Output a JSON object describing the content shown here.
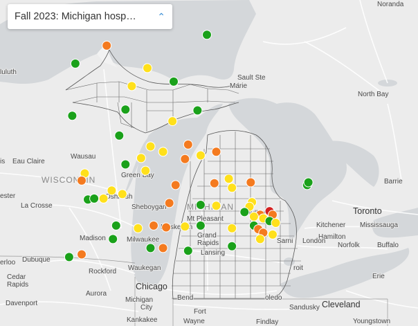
{
  "title": "Fall 2023: Michigan hosp…",
  "title_icon": "chevron-up-icon",
  "colors": {
    "land": "#f0f0f0",
    "water": "#d3d6d9",
    "green": "#1aa11a",
    "yellow": "#ffe01b",
    "orange": "#f47a1f",
    "red": "#d42121"
  },
  "labels": {
    "noranda": "Noranda",
    "sault": "Sault Ste",
    "marie": "Marie",
    "north_bay": "North Bay",
    "duluth": "luluth",
    "wausau": "Wausau",
    "eau_claire": "Eau Claire",
    "is": "is",
    "wisconsin": "WISCONSIN",
    "green_bay": "Green Bay",
    "barrie": "Barrie",
    "oshkosh": "Oshkosh",
    "sheboygan": "Sheboygan",
    "ester": "ester",
    "la_crosse": "La Crosse",
    "michigan": "MICHIGAN",
    "mt_pleasant": "Mt Pleasant",
    "midland": "Midland",
    "toronto": "Toronto",
    "kitchener": "Kitchener",
    "mississauga": "Mississauga",
    "muskegon": "Muskegon",
    "grand_rapids_1": "Grand",
    "grand_rapids_2": "Rapids",
    "madison": "Madison",
    "milwaukee": "Milwaukee",
    "hamilton": "Hamilton",
    "sarnia": "Sarni",
    "london": "London",
    "norfolk": "Norfolk",
    "buffalo": "Buffalo",
    "lansing": "Lansing",
    "detroit": "roit",
    "erloo": "erloo",
    "dubuque": "Dubuque",
    "waukegan": "Waukegan",
    "rockford": "Rockford",
    "cedar": "Cedar",
    "rapids": "Rapids",
    "erie": "Erie",
    "chicago": "Chicago",
    "aurora": "Aurora",
    "michigan_city_1": "Michigan",
    "michigan_city_2": "City",
    "south_bend": "Bend",
    "toledo": "oledo",
    "cleveland": "Cleveland",
    "davenport": "Davenport",
    "sandusky": "Sandusky",
    "kankakee": "Kankakee",
    "fort_wayne_1": "Fort",
    "fort_wayne_2": "Wayne",
    "findlay": "Findlay",
    "youngstown": "Youngstown"
  },
  "hospitals": [
    {
      "lat": 47.46,
      "lon": -88.18,
      "status": "orange"
    },
    {
      "lat": 46.86,
      "lon": -87.38,
      "status": "orange"
    },
    {
      "lat": 46.48,
      "lon": -84.38,
      "status": "orange"
    },
    {
      "lat": 45.86,
      "lon": -87.99,
      "status": "yellow"
    },
    {
      "lat": 45.06,
      "lon": -85.18,
      "status": "orange"
    },
    {
      "lat": 44.82,
      "lon": -84.1,
      "status": "green"
    },
    {
      "lat": 44.7,
      "lon": -85.7,
      "status": "orange"
    },
    {
      "lat": 44.5,
      "lon": -86.2,
      "status": "green"
    },
    {
      "lat": 44.45,
      "lon": -85.05,
      "status": "yellow"
    },
    {
      "lat": 44.3,
      "lon": -84.63,
      "status": "green"
    },
    {
      "lat": 44.25,
      "lon": -85.3,
      "status": "yellow"
    },
    {
      "lat": 43.99,
      "lon": -85.4,
      "status": "green"
    },
    {
      "lat": 43.98,
      "lon": -84.25,
      "status": "green"
    },
    {
      "lat": 43.86,
      "lon": -84.65,
      "status": "yellow"
    },
    {
      "lat": 43.92,
      "lon": -86.25,
      "status": "green"
    },
    {
      "lat": 43.7,
      "lon": -85.5,
      "status": "green"
    },
    {
      "lat": 43.58,
      "lon": -85.0,
      "status": "yellow"
    },
    {
      "lat": 43.52,
      "lon": -84.8,
      "status": "yellow"
    },
    {
      "lat": 43.6,
      "lon": -84.4,
      "status": "orange"
    },
    {
      "lat": 43.44,
      "lon": -84.45,
      "status": "orange"
    },
    {
      "lat": 43.48,
      "lon": -84.2,
      "status": "yellow"
    },
    {
      "lat": 43.52,
      "lon": -83.95,
      "status": "orange"
    },
    {
      "lat": 43.45,
      "lon": -85.15,
      "status": "yellow"
    },
    {
      "lat": 43.38,
      "lon": -85.4,
      "status": "green"
    },
    {
      "lat": 43.28,
      "lon": -86.05,
      "status": "yellow"
    },
    {
      "lat": 43.2,
      "lon": -86.1,
      "status": "orange"
    },
    {
      "lat": 43.31,
      "lon": -85.08,
      "status": "yellow"
    },
    {
      "lat": 43.15,
      "lon": -84.6,
      "status": "orange"
    },
    {
      "lat": 43.17,
      "lon": -83.98,
      "status": "orange"
    },
    {
      "lat": 43.22,
      "lon": -83.75,
      "status": "yellow"
    },
    {
      "lat": 43.12,
      "lon": -83.7,
      "status": "yellow"
    },
    {
      "lat": 43.18,
      "lon": -83.4,
      "status": "orange"
    },
    {
      "lat": 43.15,
      "lon": -82.5,
      "status": "green"
    },
    {
      "lat": 43.18,
      "lon": -82.48,
      "status": "green"
    },
    {
      "lat": 43.09,
      "lon": -85.62,
      "status": "yellow"
    },
    {
      "lat": 43.05,
      "lon": -85.45,
      "status": "yellow"
    },
    {
      "lat": 42.99,
      "lon": -86.0,
      "status": "green"
    },
    {
      "lat": 43.0,
      "lon": -85.9,
      "status": "green"
    },
    {
      "lat": 43.0,
      "lon": -85.75,
      "status": "yellow"
    },
    {
      "lat": 42.95,
      "lon": -84.7,
      "status": "orange"
    },
    {
      "lat": 42.93,
      "lon": -84.2,
      "status": "green"
    },
    {
      "lat": 42.92,
      "lon": -83.95,
      "status": "yellow"
    },
    {
      "lat": 42.96,
      "lon": -83.38,
      "status": "yellow"
    },
    {
      "lat": 42.91,
      "lon": -83.42,
      "status": "yellow"
    },
    {
      "lat": 42.86,
      "lon": -83.1,
      "status": "red"
    },
    {
      "lat": 42.85,
      "lon": -83.5,
      "status": "green"
    },
    {
      "lat": 42.82,
      "lon": -83.25,
      "status": "orange"
    },
    {
      "lat": 42.82,
      "lon": -83.05,
      "status": "orange"
    },
    {
      "lat": 42.8,
      "lon": -83.35,
      "status": "yellow"
    },
    {
      "lat": 42.78,
      "lon": -83.2,
      "status": "yellow"
    },
    {
      "lat": 42.75,
      "lon": -83.1,
      "status": "green"
    },
    {
      "lat": 42.73,
      "lon": -83.0,
      "status": "yellow"
    },
    {
      "lat": 42.7,
      "lon": -83.35,
      "status": "green"
    },
    {
      "lat": 42.7,
      "lon": -84.2,
      "status": "green"
    },
    {
      "lat": 42.67,
      "lon": -83.7,
      "status": "yellow"
    },
    {
      "lat": 42.66,
      "lon": -83.28,
      "status": "orange"
    },
    {
      "lat": 42.62,
      "lon": -83.2,
      "status": "orange"
    },
    {
      "lat": 42.6,
      "lon": -83.05,
      "status": "yellow"
    },
    {
      "lat": 42.7,
      "lon": -85.55,
      "status": "green"
    },
    {
      "lat": 42.67,
      "lon": -85.2,
      "status": "yellow"
    },
    {
      "lat": 42.7,
      "lon": -84.95,
      "status": "orange"
    },
    {
      "lat": 42.68,
      "lon": -84.75,
      "status": "orange"
    },
    {
      "lat": 42.69,
      "lon": -84.45,
      "status": "yellow"
    },
    {
      "lat": 42.55,
      "lon": -83.25,
      "status": "yellow"
    },
    {
      "lat": 42.55,
      "lon": -85.6,
      "status": "green"
    },
    {
      "lat": 42.45,
      "lon": -85.0,
      "status": "green"
    },
    {
      "lat": 42.45,
      "lon": -84.8,
      "status": "orange"
    },
    {
      "lat": 42.42,
      "lon": -84.4,
      "status": "green"
    },
    {
      "lat": 42.47,
      "lon": -83.7,
      "status": "green"
    },
    {
      "lat": 42.38,
      "lon": -86.1,
      "status": "orange"
    },
    {
      "lat": 42.35,
      "lon": -86.3,
      "status": "green"
    }
  ]
}
